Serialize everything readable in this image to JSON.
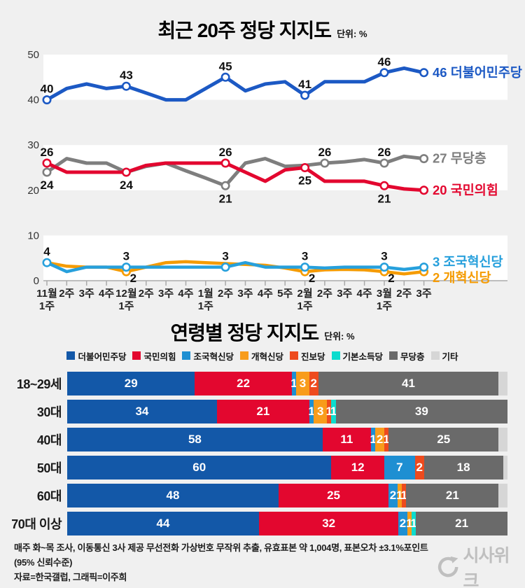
{
  "chart_data": [
    {
      "type": "line",
      "title": "최근 20주 정당 지지도",
      "unit": "단위: %",
      "ylim": [
        0,
        50
      ],
      "y_ticks": [
        50,
        40,
        30,
        20,
        10,
        0
      ],
      "bands": [
        [
          40,
          50
        ],
        [
          20,
          30
        ],
        [
          0,
          10
        ]
      ],
      "x": [
        "11월1주",
        "11월2주",
        "11월3주",
        "11월4주",
        "12월1주",
        "12월2주",
        "12월3주",
        "12월4주",
        "1월1주",
        "1월2주",
        "1월3주",
        "1월4주",
        "1월5주",
        "2월1주",
        "2월2주",
        "2월3주",
        "2월4주",
        "3월1주",
        "3월2주",
        "3월3주"
      ],
      "x_tick_lines": [
        [
          "11월",
          "1주"
        ],
        [
          "2주"
        ],
        [
          "3주"
        ],
        [
          "4주"
        ],
        [
          "12월",
          "1주"
        ],
        [
          "2주"
        ],
        [
          "3주"
        ],
        [
          "4주"
        ],
        [
          "1월",
          "1주"
        ],
        [
          "2주"
        ],
        [
          "3주"
        ],
        [
          "4주"
        ],
        [
          "5주"
        ],
        [
          "2월",
          "1주"
        ],
        [
          "2주"
        ],
        [
          "3주"
        ],
        [
          "4주"
        ],
        [
          "3월",
          "1주"
        ],
        [
          "2주"
        ],
        [
          "3주"
        ]
      ],
      "series": [
        {
          "id": "democratic",
          "name": "더불어민주당",
          "color": "#1C59C4",
          "width": 5,
          "end_label": "46 더불어민주당",
          "end_nudge": 0,
          "values": [
            40,
            42.5,
            43.5,
            42.5,
            43,
            41.5,
            40,
            40,
            42.5,
            45,
            42,
            43.5,
            44,
            41,
            44,
            44,
            44,
            46,
            47,
            46
          ],
          "labeled": [
            [
              0,
              40,
              "a"
            ],
            [
              4,
              43,
              "a"
            ],
            [
              9,
              45,
              "a"
            ],
            [
              13,
              41,
              "a"
            ],
            [
              17,
              46,
              "a"
            ]
          ]
        },
        {
          "id": "independents",
          "name": "무당층",
          "color": "#7E7E7E",
          "width": 5,
          "end_label": "27 무당층",
          "end_nudge": 0,
          "values": [
            24,
            27,
            26,
            26,
            24,
            25.3,
            26,
            24.3,
            22.7,
            21,
            26,
            27,
            25.3,
            25.5,
            26,
            26.3,
            26.8,
            26,
            27.5,
            27
          ],
          "labeled": [
            [
              0,
              24,
              "b"
            ],
            [
              9,
              21,
              "b"
            ],
            [
              14,
              26,
              "a"
            ],
            [
              17,
              26,
              "a"
            ]
          ]
        },
        {
          "id": "ppp",
          "name": "국민의힘",
          "color": "#E3072F",
          "width": 5,
          "end_label": "20 국민의힘",
          "end_nudge": 0,
          "values": [
            26,
            24,
            24,
            24,
            24,
            25.5,
            26,
            26,
            26,
            26,
            24,
            22,
            24.5,
            25,
            22,
            22,
            22,
            21,
            20.3,
            20
          ],
          "labeled": [
            [
              0,
              26,
              "a"
            ],
            [
              4,
              24,
              "b"
            ],
            [
              9,
              26,
              "a"
            ],
            [
              13,
              25,
              "b"
            ],
            [
              17,
              21,
              "b"
            ]
          ]
        },
        {
          "id": "reform",
          "name": "개혁신당",
          "color": "#F59B00",
          "width": 4.5,
          "end_label": "2 개혁신당",
          "end_nudge": 9,
          "values": [
            4,
            3.2,
            3,
            3,
            2,
            3,
            4,
            4.2,
            4,
            3.8,
            3.6,
            3.4,
            2.8,
            2,
            2.4,
            2.5,
            2.4,
            2,
            1.5,
            2
          ],
          "labeled": [
            [
              4,
              2,
              "b"
            ],
            [
              13,
              2,
              "b"
            ],
            [
              17,
              2,
              "b"
            ]
          ]
        },
        {
          "id": "rebuilding",
          "name": "조국혁신당",
          "color": "#27A0DC",
          "width": 4.5,
          "end_label": "3 조국혁신당",
          "end_nudge": -7,
          "values": [
            4,
            2,
            3,
            3,
            3,
            3,
            3,
            3,
            3,
            3,
            4,
            3,
            3,
            3,
            2.8,
            3,
            3,
            3,
            2.5,
            3
          ],
          "labeled": [
            [
              0,
              4,
              "a"
            ],
            [
              4,
              3,
              "a"
            ],
            [
              9,
              3,
              "a"
            ],
            [
              13,
              3,
              "a"
            ],
            [
              17,
              3,
              "a"
            ]
          ]
        }
      ]
    },
    {
      "type": "stacked_bar_horizontal",
      "title": "연령별 정당 지지도",
      "unit": "단위: %",
      "parties": [
        {
          "name": "더불어민주당",
          "color": "#1358A8"
        },
        {
          "name": "국민의힘",
          "color": "#E3072F"
        },
        {
          "name": "조국혁신당",
          "color": "#1E8FD2"
        },
        {
          "name": "개혁신당",
          "color": "#F89C1B"
        },
        {
          "name": "진보당",
          "color": "#EE4A1D"
        },
        {
          "name": "기본소득당",
          "color": "#0CDCCE"
        },
        {
          "name": "무당층",
          "color": "#6A6A6A"
        },
        {
          "name": "기타",
          "color": "#D6D6D6"
        }
      ],
      "rows": [
        {
          "label": "18~29세",
          "segments": [
            [
              0,
              29,
              1
            ],
            [
              1,
              22,
              1
            ],
            [
              2,
              1,
              1
            ],
            [
              3,
              3,
              1
            ],
            [
              4,
              2,
              1
            ],
            [
              6,
              41,
              1
            ],
            [
              7,
              2,
              0
            ]
          ]
        },
        {
          "label": "30대",
          "segments": [
            [
              0,
              34,
              1
            ],
            [
              1,
              21,
              1
            ],
            [
              2,
              1,
              1
            ],
            [
              3,
              3,
              1
            ],
            [
              4,
              1,
              1
            ],
            [
              5,
              1,
              1
            ],
            [
              6,
              39,
              1
            ]
          ]
        },
        {
          "label": "40대",
          "segments": [
            [
              0,
              58,
              1
            ],
            [
              1,
              11,
              1
            ],
            [
              2,
              1,
              1
            ],
            [
              3,
              2,
              1
            ],
            [
              4,
              1,
              1
            ],
            [
              6,
              25,
              1
            ],
            [
              7,
              2,
              0
            ]
          ]
        },
        {
          "label": "50대",
          "segments": [
            [
              0,
              60,
              1
            ],
            [
              1,
              12,
              1
            ],
            [
              2,
              7,
              1
            ],
            [
              4,
              2,
              1
            ],
            [
              6,
              18,
              1
            ],
            [
              7,
              1,
              0
            ]
          ]
        },
        {
          "label": "60대",
          "segments": [
            [
              0,
              48,
              1
            ],
            [
              1,
              25,
              1
            ],
            [
              2,
              2,
              1
            ],
            [
              3,
              1,
              1
            ],
            [
              4,
              1,
              1
            ],
            [
              6,
              21,
              1
            ],
            [
              7,
              2,
              0
            ]
          ]
        },
        {
          "label": "70대 이상",
          "segments": [
            [
              0,
              44,
              1
            ],
            [
              1,
              32,
              1
            ],
            [
              2,
              2,
              1
            ],
            [
              3,
              1,
              1
            ],
            [
              5,
              1,
              1
            ],
            [
              6,
              21,
              1
            ]
          ]
        }
      ]
    }
  ],
  "footer": {
    "line1": "매주 화~목 조사, 이동통신 3사 제공 무선전화 가상번호 무작위 추출, 유효표본 약 1,004명, 표본오차 ±3.1%포인트(95% 신뢰수준)",
    "line2": "자료=한국갤럽, 그래픽=이주희",
    "logo_text": "시사위크"
  }
}
